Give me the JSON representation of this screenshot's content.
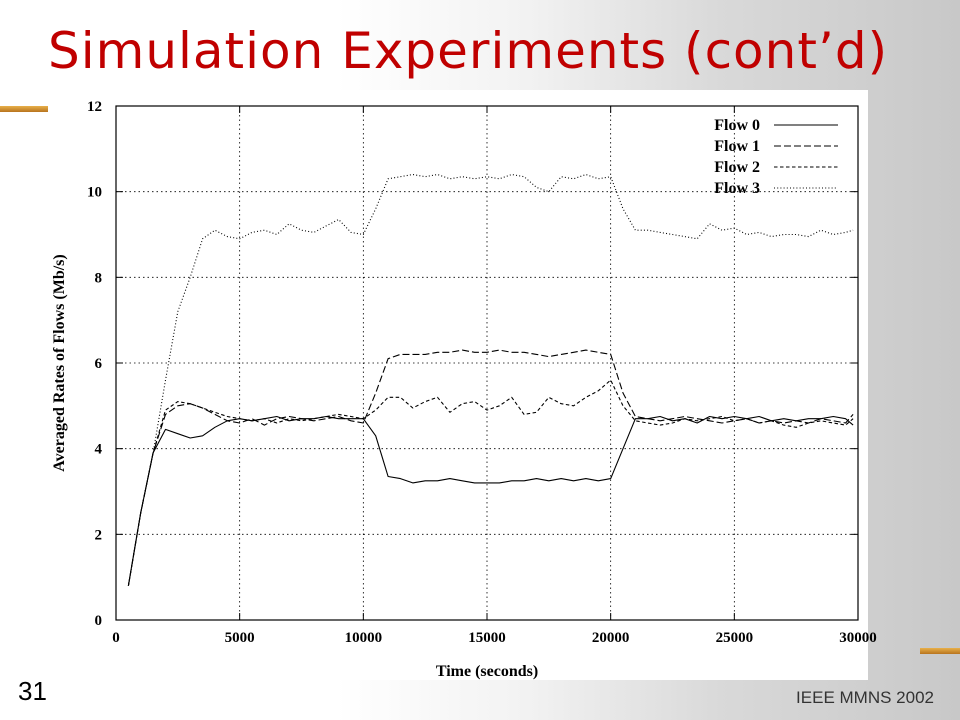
{
  "slide": {
    "title": "Simulation Experiments (cont’d)",
    "number": "31",
    "footer": "IEEE MMNS 2002"
  },
  "colors": {
    "title": "#c00000",
    "accent": "#d89a38",
    "line": "#000000"
  },
  "chart_data": {
    "type": "line",
    "xlabel": "Time (seconds)",
    "ylabel": "Averaged Rates of Flows (Mb/s)",
    "xlim": [
      0,
      30000
    ],
    "ylim": [
      0,
      12
    ],
    "xticks": [
      0,
      5000,
      10000,
      15000,
      20000,
      25000,
      30000
    ],
    "yticks": [
      0,
      2,
      4,
      6,
      8,
      10,
      12
    ],
    "grid": true,
    "legend_position": "top-right",
    "series": [
      {
        "name": "Flow 0",
        "dash": "solid",
        "x": [
          500,
          1000,
          1500,
          2000,
          2500,
          3000,
          3500,
          4000,
          4500,
          5000,
          5500,
          6000,
          6500,
          7000,
          7500,
          8000,
          8500,
          9000,
          9500,
          10000,
          10500,
          11000,
          11500,
          12000,
          12500,
          13000,
          13500,
          14000,
          14500,
          15000,
          15500,
          16000,
          16500,
          17000,
          17500,
          18000,
          18500,
          19000,
          19500,
          20000,
          20500,
          21000,
          21500,
          22000,
          22500,
          23000,
          23500,
          24000,
          24500,
          25000,
          25500,
          26000,
          26500,
          27000,
          27500,
          28000,
          28500,
          29000,
          29500,
          29800
        ],
        "y": [
          0.8,
          2.5,
          3.9,
          4.45,
          4.35,
          4.25,
          4.3,
          4.5,
          4.65,
          4.7,
          4.65,
          4.7,
          4.75,
          4.65,
          4.7,
          4.7,
          4.75,
          4.7,
          4.7,
          4.7,
          4.3,
          3.35,
          3.3,
          3.2,
          3.25,
          3.25,
          3.3,
          3.25,
          3.2,
          3.2,
          3.2,
          3.25,
          3.25,
          3.3,
          3.25,
          3.3,
          3.25,
          3.3,
          3.25,
          3.3,
          4.0,
          4.7,
          4.7,
          4.75,
          4.65,
          4.7,
          4.6,
          4.75,
          4.7,
          4.75,
          4.7,
          4.75,
          4.65,
          4.7,
          4.65,
          4.7,
          4.7,
          4.75,
          4.7,
          4.55
        ]
      },
      {
        "name": "Flow 1",
        "dash": "dashed",
        "x": [
          500,
          1000,
          1500,
          2000,
          2500,
          3000,
          3500,
          4000,
          4500,
          5000,
          5500,
          6000,
          6500,
          7000,
          7500,
          8000,
          8500,
          9000,
          9500,
          10000,
          10500,
          11000,
          11500,
          12000,
          12500,
          13000,
          13500,
          14000,
          14500,
          15000,
          15500,
          16000,
          16500,
          17000,
          17500,
          18000,
          18500,
          19000,
          19500,
          20000,
          20500,
          21000,
          21500,
          22000,
          22500,
          23000,
          23500,
          24000,
          24500,
          25000,
          25500,
          26000,
          26500,
          27000,
          27500,
          28000,
          28500,
          29000,
          29500,
          29800
        ],
        "y": [
          0.8,
          2.5,
          3.9,
          4.8,
          5.0,
          5.05,
          4.95,
          4.8,
          4.65,
          4.6,
          4.7,
          4.55,
          4.7,
          4.75,
          4.7,
          4.65,
          4.7,
          4.75,
          4.65,
          4.6,
          5.3,
          6.1,
          6.2,
          6.2,
          6.2,
          6.25,
          6.25,
          6.3,
          6.25,
          6.25,
          6.3,
          6.25,
          6.25,
          6.2,
          6.15,
          6.2,
          6.25,
          6.3,
          6.25,
          6.2,
          5.3,
          4.75,
          4.7,
          4.65,
          4.7,
          4.75,
          4.7,
          4.65,
          4.6,
          4.65,
          4.7,
          4.6,
          4.65,
          4.6,
          4.65,
          4.6,
          4.7,
          4.65,
          4.6,
          4.8
        ]
      },
      {
        "name": "Flow 2",
        "dash": "short-dashed",
        "x": [
          500,
          1000,
          1500,
          2000,
          2500,
          3000,
          3500,
          4000,
          4500,
          5000,
          5500,
          6000,
          6500,
          7000,
          7500,
          8000,
          8500,
          9000,
          9500,
          10000,
          10500,
          11000,
          11500,
          12000,
          12500,
          13000,
          13500,
          14000,
          14500,
          15000,
          15500,
          16000,
          16500,
          17000,
          17500,
          18000,
          18500,
          19000,
          19500,
          20000,
          20500,
          21000,
          21500,
          22000,
          22500,
          23000,
          23500,
          24000,
          24500,
          25000,
          25500,
          26000,
          26500,
          27000,
          27500,
          28000,
          28500,
          29000,
          29500,
          29800
        ],
        "y": [
          0.8,
          2.5,
          3.9,
          4.9,
          5.1,
          5.05,
          4.95,
          4.85,
          4.75,
          4.7,
          4.65,
          4.7,
          4.6,
          4.7,
          4.65,
          4.7,
          4.75,
          4.8,
          4.75,
          4.7,
          4.9,
          5.2,
          5.2,
          4.95,
          5.1,
          5.2,
          4.85,
          5.05,
          5.1,
          4.9,
          5.0,
          5.2,
          4.8,
          4.85,
          5.2,
          5.05,
          5.0,
          5.2,
          5.35,
          5.6,
          5.0,
          4.65,
          4.6,
          4.55,
          4.6,
          4.7,
          4.65,
          4.7,
          4.75,
          4.65,
          4.7,
          4.6,
          4.65,
          4.55,
          4.5,
          4.6,
          4.65,
          4.6,
          4.55,
          4.7
        ]
      },
      {
        "name": "Flow 3",
        "dash": "dotted",
        "x": [
          500,
          1000,
          1500,
          2000,
          2500,
          3000,
          3500,
          4000,
          4500,
          5000,
          5500,
          6000,
          6500,
          7000,
          7500,
          8000,
          8500,
          9000,
          9500,
          10000,
          10500,
          11000,
          11500,
          12000,
          12500,
          13000,
          13500,
          14000,
          14500,
          15000,
          15500,
          16000,
          16500,
          17000,
          17500,
          18000,
          18500,
          19000,
          19500,
          20000,
          20500,
          21000,
          21500,
          22000,
          22500,
          23000,
          23500,
          24000,
          24500,
          25000,
          25500,
          26000,
          26500,
          27000,
          27500,
          28000,
          28500,
          29000,
          29500,
          29800
        ],
        "y": [
          0.8,
          2.5,
          3.9,
          5.6,
          7.2,
          8.0,
          8.9,
          9.1,
          8.95,
          8.9,
          9.05,
          9.1,
          9.0,
          9.25,
          9.1,
          9.05,
          9.2,
          9.35,
          9.05,
          9.0,
          9.6,
          10.3,
          10.35,
          10.4,
          10.35,
          10.4,
          10.3,
          10.35,
          10.3,
          10.35,
          10.3,
          10.4,
          10.35,
          10.1,
          10.0,
          10.35,
          10.3,
          10.4,
          10.3,
          10.35,
          9.6,
          9.1,
          9.1,
          9.05,
          9.0,
          8.95,
          8.9,
          9.25,
          9.1,
          9.15,
          9.0,
          9.05,
          8.95,
          9.0,
          9.0,
          8.95,
          9.1,
          9.0,
          9.05,
          9.1
        ]
      }
    ]
  }
}
